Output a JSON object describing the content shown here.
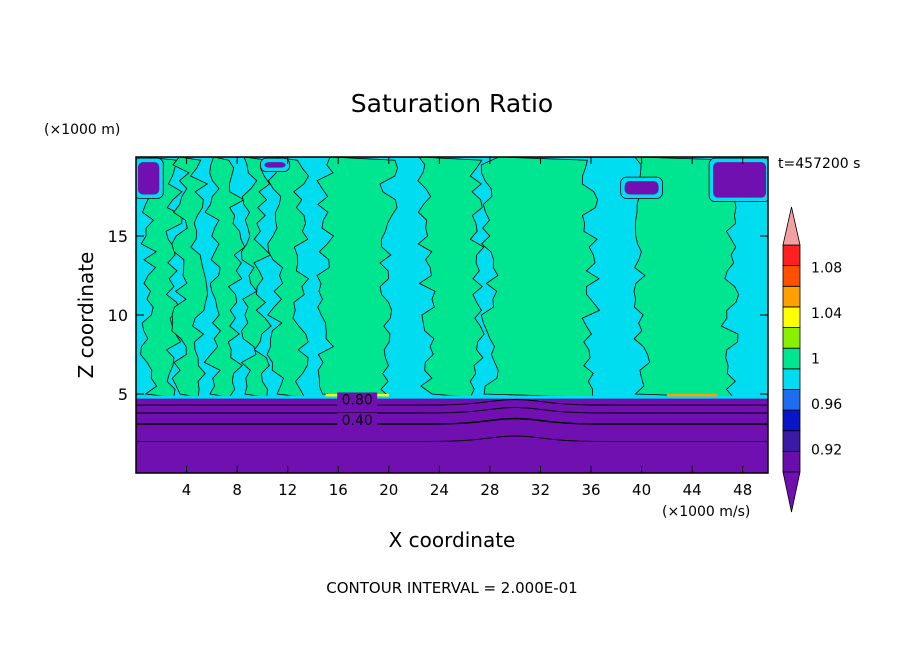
{
  "chart_data": {
    "type": "heatmap",
    "title": "Saturation Ratio",
    "xlabel": "X coordinate",
    "ylabel": "Z coordinate",
    "x_unit": "(×1000 m/s)",
    "y_unit": "(×1000 m)",
    "time_label": "t=457200 s",
    "footer": "CONTOUR INTERVAL = 2.000E-01",
    "xlim": [
      0,
      50
    ],
    "ylim": [
      0,
      20
    ],
    "x_ticks": [
      "4",
      "8",
      "12",
      "16",
      "20",
      "24",
      "28",
      "32",
      "36",
      "40",
      "44",
      "48"
    ],
    "y_ticks": [
      "5",
      "10",
      "15"
    ],
    "x_tick_values": [
      4,
      8,
      12,
      16,
      20,
      24,
      28,
      32,
      36,
      40,
      44,
      48
    ],
    "y_tick_values": [
      5,
      10,
      15
    ],
    "colorbar": {
      "labels": [
        "1.08",
        "1.04",
        "1",
        "0.96",
        "0.92"
      ],
      "label_values": [
        1.08,
        1.04,
        1.0,
        0.96,
        0.92
      ],
      "min": 0.9,
      "max": 1.1,
      "step": 0.02,
      "colors": [
        "#6a0dad",
        "#3a1aa6",
        "#0a14c8",
        "#1f6cf0",
        "#00dcf0",
        "#00e690",
        "#88f000",
        "#ffff00",
        "#ffa000",
        "#ff5000",
        "#ff2020"
      ],
      "over_color": "#f4a0a0",
      "under_color": "#7010b0"
    },
    "contour_labels": [
      {
        "text": "0.80",
        "x": 17.5,
        "y": 4.4
      },
      {
        "text": "0.40",
        "x": 17.5,
        "y": 3.1
      }
    ],
    "regions": {
      "surface_level_km": 4.8,
      "lower_value": 0.4,
      "background_value": 0.99,
      "light_green_value": 1.01,
      "light_green_bands_x": [
        [
          1,
          3
        ],
        [
          3.5,
          5
        ],
        [
          6,
          8
        ],
        [
          9,
          10
        ],
        [
          11,
          13
        ],
        [
          15,
          20
        ],
        [
          23,
          27
        ],
        [
          28,
          36
        ],
        [
          40,
          47
        ]
      ],
      "dry_patches": [
        {
          "x": [
            0,
            2
          ],
          "y": [
            17.5,
            19.8
          ]
        },
        {
          "x": [
            45.5,
            50
          ],
          "y": [
            17.3,
            19.8
          ]
        },
        {
          "x": [
            38.5,
            41.5
          ],
          "y": [
            17.5,
            18.6
          ]
        },
        {
          "x": [
            10,
            12
          ],
          "y": [
            19.2,
            19.8
          ]
        }
      ]
    }
  }
}
